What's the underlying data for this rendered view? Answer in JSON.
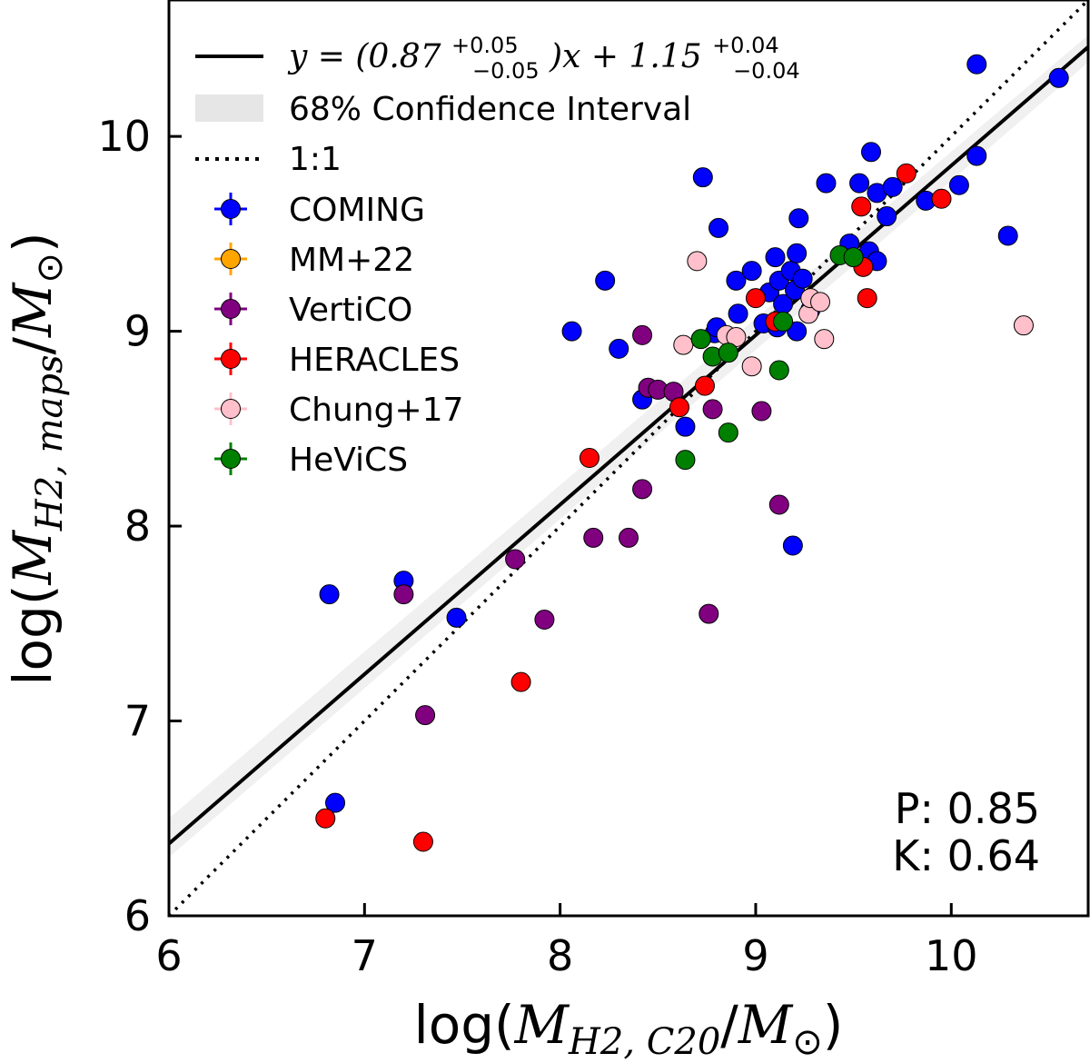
{
  "chart_data": {
    "type": "scatter",
    "xlabel": "log(M_H2,C20/M⊙)",
    "ylabel": "log(M_H2,maps/M⊙)",
    "xlim": [
      6.0,
      10.7
    ],
    "ylim": [
      6.0,
      10.7
    ],
    "x_ticks": [
      6,
      7,
      8,
      9,
      10
    ],
    "y_ticks": [
      6,
      7,
      8,
      9,
      10
    ],
    "x_tick_labels": [
      "6",
      "7",
      "8",
      "9",
      "10"
    ],
    "y_tick_labels": [
      "6",
      "7",
      "8",
      "9",
      "10"
    ],
    "grid": false,
    "legend_position": "upper-left",
    "legend": {
      "fit_label": "y = (0.87^{+0.05}_{-0.05})x + 1.15^{+0.04}_{-0.04}",
      "fit_main_1": "y = (0.87",
      "fit_sup_1": "+0.05",
      "fit_sub_1": "−0.05",
      "fit_main_2": ")x + 1.15",
      "fit_sup_2": "+0.04",
      "fit_sub_2": "−0.04",
      "ci_label": "68% Confidence Interval",
      "one_to_one_label": "1:1"
    },
    "fit": {
      "slope": 0.87,
      "intercept": 1.15,
      "slope_err": 0.05,
      "intercept_err": 0.04
    },
    "confidence_band": {
      "y_low_at_6": 6.3,
      "y_high_at_6": 6.5,
      "y_low_at_10_7": 10.38,
      "y_high_at_10_7": 10.52
    },
    "stats": {
      "p_label": "P: 0.85",
      "k_label": "K: 0.64"
    },
    "series": [
      {
        "name": "COMING",
        "color": "#0000ff",
        "points": [
          [
            6.82,
            7.65
          ],
          [
            6.85,
            6.58
          ],
          [
            7.2,
            7.72
          ],
          [
            7.47,
            7.53
          ],
          [
            8.06,
            9.0
          ],
          [
            8.23,
            9.26
          ],
          [
            8.3,
            8.91
          ],
          [
            8.42,
            8.65
          ],
          [
            8.64,
            8.51
          ],
          [
            8.73,
            9.79
          ],
          [
            8.79,
            8.99
          ],
          [
            8.81,
            9.53
          ],
          [
            8.8,
            9.02
          ],
          [
            8.9,
            9.26
          ],
          [
            8.91,
            9.09
          ],
          [
            8.98,
            9.31
          ],
          [
            9.04,
            9.04
          ],
          [
            9.07,
            9.2
          ],
          [
            9.1,
            9.38
          ],
          [
            9.11,
            9.02
          ],
          [
            9.12,
            9.26
          ],
          [
            9.14,
            9.14
          ],
          [
            9.18,
            9.31
          ],
          [
            9.2,
            9.21
          ],
          [
            9.21,
            9.0
          ],
          [
            9.21,
            9.4
          ],
          [
            9.22,
            9.58
          ],
          [
            9.24,
            9.27
          ],
          [
            9.28,
            9.11
          ],
          [
            9.19,
            7.9
          ],
          [
            9.36,
            9.76
          ],
          [
            9.48,
            9.45
          ],
          [
            9.53,
            9.76
          ],
          [
            9.58,
            9.41
          ],
          [
            9.59,
            9.92
          ],
          [
            9.62,
            9.36
          ],
          [
            9.62,
            9.71
          ],
          [
            9.67,
            9.59
          ],
          [
            9.7,
            9.74
          ],
          [
            9.87,
            9.67
          ],
          [
            10.04,
            9.75
          ],
          [
            10.13,
            9.9
          ],
          [
            10.13,
            10.37
          ],
          [
            10.29,
            9.49
          ],
          [
            10.55,
            10.3
          ]
        ]
      },
      {
        "name": "MM+22",
        "color": "#ffa500",
        "points": []
      },
      {
        "name": "VertiCO",
        "color": "#800080",
        "points": [
          [
            7.2,
            7.65
          ],
          [
            7.31,
            7.03
          ],
          [
            7.77,
            7.83
          ],
          [
            7.92,
            7.52
          ],
          [
            8.17,
            7.94
          ],
          [
            8.35,
            7.94
          ],
          [
            8.42,
            8.19
          ],
          [
            8.42,
            8.98
          ],
          [
            8.45,
            8.71
          ],
          [
            8.5,
            8.7
          ],
          [
            8.58,
            8.69
          ],
          [
            8.76,
            7.55
          ],
          [
            8.78,
            8.6
          ],
          [
            9.03,
            8.59
          ],
          [
            9.12,
            8.11
          ]
        ]
      },
      {
        "name": "HERACLES",
        "color": "#ff0000",
        "points": [
          [
            6.8,
            6.5
          ],
          [
            7.3,
            6.38
          ],
          [
            7.8,
            7.2
          ],
          [
            8.15,
            8.35
          ],
          [
            8.61,
            8.61
          ],
          [
            8.74,
            8.72
          ],
          [
            9.0,
            9.17
          ],
          [
            9.1,
            9.05
          ],
          [
            9.54,
            9.64
          ],
          [
            9.55,
            9.33
          ],
          [
            9.57,
            9.17
          ],
          [
            9.77,
            9.81
          ],
          [
            9.95,
            9.68
          ]
        ]
      },
      {
        "name": "Chung+17",
        "color": "#ffc0cb",
        "points": [
          [
            8.63,
            8.93
          ],
          [
            8.7,
            9.36
          ],
          [
            8.85,
            8.98
          ],
          [
            8.9,
            8.97
          ],
          [
            8.98,
            8.82
          ],
          [
            9.27,
            9.09
          ],
          [
            9.28,
            9.17
          ],
          [
            9.33,
            9.15
          ],
          [
            9.35,
            8.96
          ],
          [
            10.37,
            9.03
          ]
        ]
      },
      {
        "name": "HeViCS",
        "color": "#008000",
        "points": [
          [
            8.64,
            8.34
          ],
          [
            8.72,
            8.96
          ],
          [
            8.78,
            8.87
          ],
          [
            8.86,
            8.48
          ],
          [
            8.86,
            8.89
          ],
          [
            9.12,
            8.8
          ],
          [
            9.14,
            9.05
          ],
          [
            9.43,
            9.39
          ],
          [
            9.5,
            9.38
          ]
        ]
      }
    ]
  }
}
